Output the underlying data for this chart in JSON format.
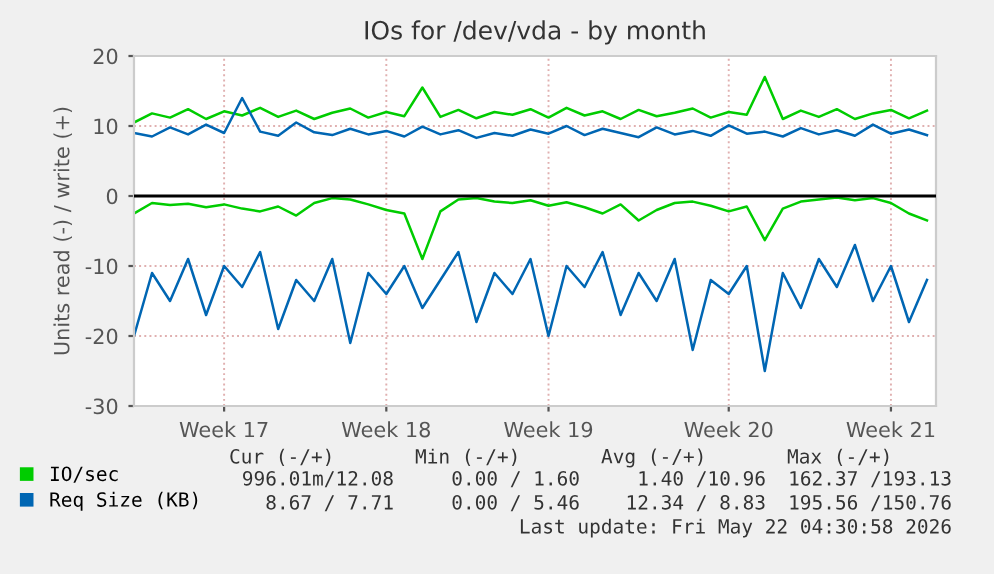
{
  "chart_data": {
    "type": "line",
    "title": "IOs for /dev/vda - by month",
    "ylabel": "Units read (-) / write (+)",
    "categories": [
      null,
      null,
      null,
      null,
      null,
      "Week 17",
      null,
      null,
      null,
      null,
      null,
      null,
      null,
      null,
      "Week 18",
      null,
      null,
      null,
      null,
      null,
      null,
      null,
      null,
      "Week 19",
      null,
      null,
      null,
      null,
      null,
      null,
      null,
      null,
      null,
      "Week 20",
      null,
      null,
      null,
      null,
      null,
      null,
      null,
      null,
      "Week 21",
      null,
      null
    ],
    "series": [
      {
        "name": "IO/sec",
        "color": "#00cc00",
        "values": [
          10.5,
          11.8,
          11.2,
          12.4,
          11.0,
          12.1,
          11.5,
          12.6,
          11.3,
          12.2,
          11.0,
          11.9,
          12.5,
          11.2,
          12.0,
          11.4,
          15.5,
          11.3,
          12.3,
          11.1,
          12.0,
          11.6,
          12.4,
          11.2,
          12.6,
          11.5,
          12.1,
          11.0,
          12.3,
          11.4,
          11.9,
          12.5,
          11.2,
          12.0,
          11.6,
          17.0,
          11.0,
          12.2,
          11.3,
          12.4,
          11.0,
          11.8,
          12.3,
          11.1,
          12.2
        ]
      },
      {
        "color": "#00cc00",
        "values": [
          -2.5,
          -1.0,
          -1.3,
          -1.1,
          -1.6,
          -1.2,
          -1.8,
          -2.2,
          -1.5,
          -2.8,
          -1.0,
          -0.3,
          -0.5,
          -1.2,
          -2.0,
          -2.5,
          -9.0,
          -2.2,
          -0.5,
          -0.3,
          -0.8,
          -1.0,
          -0.6,
          -1.4,
          -0.9,
          -1.6,
          -2.5,
          -1.2,
          -3.5,
          -2.0,
          -1.0,
          -0.8,
          -1.4,
          -2.2,
          -1.5,
          -6.3,
          -1.8,
          -0.8,
          -0.5,
          -0.2,
          -0.6,
          -0.3,
          -1.0,
          -2.5,
          -3.5
        ]
      },
      {
        "name": "Req Size (KB)",
        "color": "#0066b3",
        "values": [
          9.0,
          8.5,
          9.8,
          8.8,
          10.2,
          9.0,
          14.0,
          9.2,
          8.6,
          10.5,
          9.1,
          8.7,
          9.6,
          8.8,
          9.3,
          8.5,
          9.9,
          8.8,
          9.4,
          8.3,
          9.0,
          8.6,
          9.5,
          8.9,
          10.0,
          8.7,
          9.6,
          9.0,
          8.4,
          9.8,
          8.8,
          9.3,
          8.6,
          10.1,
          8.9,
          9.2,
          8.5,
          9.7,
          8.8,
          9.4,
          8.6,
          10.2,
          8.9,
          9.5,
          8.7
        ]
      },
      {
        "color": "#0066b3",
        "values": [
          -20,
          -11,
          -15,
          -9,
          -17,
          -10,
          -13,
          -8,
          -19,
          -12,
          -15,
          -9,
          -21,
          -11,
          -14,
          -10,
          -16,
          -12,
          -8,
          -18,
          -11,
          -14,
          -9,
          -20,
          -10,
          -13,
          -8,
          -17,
          -11,
          -15,
          -9,
          -22,
          -12,
          -14,
          -10,
          -25,
          -11,
          -16,
          -9,
          -13,
          -7,
          -15,
          -10,
          -18,
          -12
        ]
      }
    ],
    "ylim": [
      -30,
      20
    ],
    "yticks": [
      -30,
      -20,
      -10,
      0,
      10,
      20
    ],
    "grid": true,
    "legend": "bottom left",
    "marker": "none",
    "line_style": "solid",
    "ref_lines": [
      {
        "axis": "y",
        "value": 0,
        "color": "#000000"
      }
    ],
    "annotations": [
      "Cur (-/+)",
      "Min (-/+)",
      "Avg (-/+)",
      "Max (-/+)",
      "996.01m/12.08",
      "0.00 / 1.60",
      "1.40 /10.96",
      "162.37 /193.13",
      "8.67 / 7.71",
      "0.00 / 5.46",
      "12.34 / 8.83",
      "195.56 /150.76",
      "Last update: Fri May 22 04:30:58 2026"
    ]
  }
}
